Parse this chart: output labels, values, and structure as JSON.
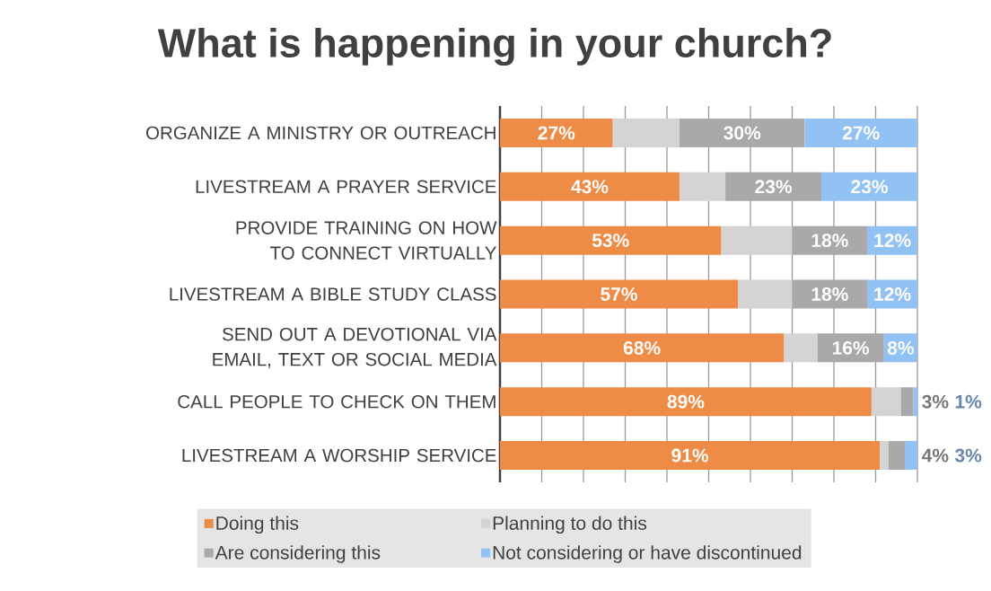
{
  "chart_data": {
    "type": "bar",
    "orientation": "horizontal",
    "stacked": true,
    "title": "What is happening in your church?",
    "categories": [
      "ORGANIZE A MINISTRY OR OUTREACH",
      "LIVESTREAM A PRAYER SERVICE",
      "PROVIDE TRAINING ON HOW TO CONNECT VIRTUALLY",
      "LIVESTREAM A BIBLE STUDY CLASS",
      "SEND OUT A DEVOTIONAL VIA EMAIL, TEXT OR SOCIAL MEDIA",
      "CALL PEOPLE TO CHECK ON THEM",
      "LIVESTREAM A WORSHIP SERVICE"
    ],
    "series": [
      {
        "name": "Doing this",
        "color": "#ed8b47",
        "values": [
          27,
          43,
          53,
          57,
          68,
          89,
          91
        ],
        "value_labels": [
          "27%",
          "43%",
          "53%",
          "57%",
          "68%",
          "89%",
          "91%"
        ]
      },
      {
        "name": "Planning to do this",
        "color": "#d5d3d3",
        "values": [
          16,
          11,
          17,
          13,
          8,
          7,
          2
        ]
      },
      {
        "name": "Are considering this",
        "color": "#a9a9a9",
        "values": [
          30,
          23,
          18,
          18,
          16,
          3,
          4
        ],
        "value_labels": [
          "30%",
          "23%",
          "18%",
          "18%",
          "16%",
          "3%",
          "4%"
        ]
      },
      {
        "name": "Not considering or have discontinued",
        "color": "#92c1f4",
        "values": [
          27,
          23,
          12,
          12,
          8,
          1,
          3
        ],
        "value_labels": [
          "27%",
          "23%",
          "12%",
          "12%",
          "8%",
          "1%",
          "3%"
        ]
      }
    ],
    "xlim": [
      0,
      100
    ],
    "xticks": [
      {
        "value": 0,
        "label": null
      },
      {
        "value": 10,
        "label": null
      },
      {
        "value": 20,
        "label": null
      },
      {
        "value": 30,
        "label": null
      },
      {
        "value": 40,
        "label": null
      },
      {
        "value": 50,
        "label": null
      },
      {
        "value": 60,
        "label": null
      },
      {
        "value": 70,
        "label": null
      },
      {
        "value": 80,
        "label": null
      },
      {
        "value": 90,
        "label": null
      },
      {
        "value": 100,
        "label": null
      }
    ],
    "grid": "x",
    "tick_labels": "y",
    "legend": "bottom"
  }
}
